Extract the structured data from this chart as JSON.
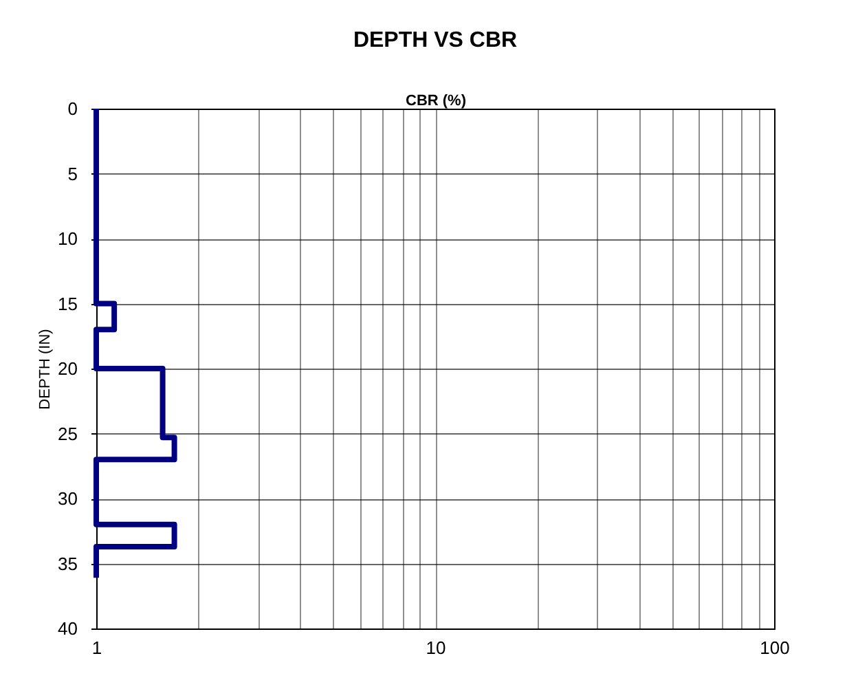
{
  "chart_data": {
    "type": "line",
    "title": "DEPTH VS CBR",
    "xlabel": "CBR (%)",
    "ylabel": "DEPTH (IN)",
    "series": [
      {
        "color": "#000080",
        "x": [
          1,
          1,
          1.13,
          1.13,
          1,
          1,
          1.57,
          1.57,
          1.7,
          1.7,
          1,
          1,
          1.7,
          1.7,
          1,
          1
        ],
        "values": [
          0,
          15,
          15,
          17,
          17,
          20,
          20,
          25.3,
          25.3,
          27,
          27,
          32,
          32,
          33.7,
          33.7,
          36.1
        ]
      }
    ],
    "log": "x",
    "xlim": [
      1,
      100
    ],
    "xticks": [
      1,
      {
        "value": 2,
        "label": null
      },
      {
        "value": 3,
        "label": null
      },
      {
        "value": 4,
        "label": null
      },
      {
        "value": 5,
        "label": null
      },
      {
        "value": 6,
        "label": null
      },
      {
        "value": 7,
        "label": null
      },
      {
        "value": 8,
        "label": null
      },
      {
        "value": 9,
        "label": null
      },
      10,
      {
        "value": 20,
        "label": null
      },
      {
        "value": 30,
        "label": null
      },
      {
        "value": 40,
        "label": null
      },
      {
        "value": 50,
        "label": null
      },
      {
        "value": 60,
        "label": null
      },
      {
        "value": 70,
        "label": null
      },
      {
        "value": 80,
        "label": null
      },
      {
        "value": 90,
        "label": null
      },
      100
    ],
    "ylim": [
      40,
      0
    ],
    "yticks": [
      0,
      5,
      10,
      15,
      20,
      25,
      30,
      35,
      40
    ],
    "grid": true,
    "marker": "none",
    "line_style": "solid"
  }
}
